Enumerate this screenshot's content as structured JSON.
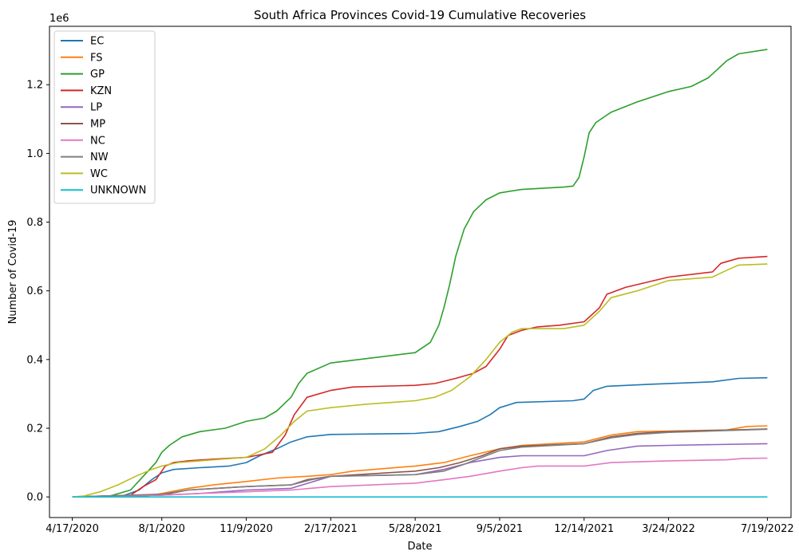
{
  "chart_data": {
    "type": "line",
    "title": "South Africa Provinces Covid-19 Cumulative Recoveries",
    "xlabel": "Date",
    "ylabel": "Number of Covid-19",
    "y_offset_label": "1e6",
    "y_multiplier": 1000000,
    "ylim": [
      -0.06,
      1.37
    ],
    "yticks": [
      0.0,
      0.2,
      0.4,
      0.6,
      0.8,
      1.0,
      1.2
    ],
    "ytick_labels": [
      "0.0",
      "0.2",
      "0.4",
      "0.6",
      "0.8",
      "1.0",
      "1.2"
    ],
    "xlim": [
      "2020-03-21",
      "2022-08-16"
    ],
    "xticks": [
      "2020-04-17",
      "2020-08-01",
      "2020-11-09",
      "2021-02-17",
      "2021-05-28",
      "2021-09-05",
      "2021-12-14",
      "2022-03-24",
      "2022-07-19"
    ],
    "xtick_labels": [
      "4/17/2020",
      "8/1/2020",
      "11/9/2020",
      "2/17/2021",
      "5/28/2021",
      "9/5/2021",
      "12/14/2021",
      "3/24/2022",
      "7/19/2022"
    ],
    "grid": false,
    "legend_position": "upper-left",
    "series": [
      {
        "name": "EC",
        "color": "#1f77b4",
        "points": [
          [
            "2020-04-17",
            0.0
          ],
          [
            "2020-06-15",
            0.002
          ],
          [
            "2020-07-05",
            0.02
          ],
          [
            "2020-07-20",
            0.05
          ],
          [
            "2020-08-01",
            0.07
          ],
          [
            "2020-08-15",
            0.08
          ],
          [
            "2020-09-15",
            0.085
          ],
          [
            "2020-10-20",
            0.09
          ],
          [
            "2020-11-09",
            0.1
          ],
          [
            "2020-11-25",
            0.12
          ],
          [
            "2020-12-15",
            0.14
          ],
          [
            "2021-01-01",
            0.16
          ],
          [
            "2021-01-20",
            0.175
          ],
          [
            "2021-02-17",
            0.182
          ],
          [
            "2021-05-28",
            0.185
          ],
          [
            "2021-06-25",
            0.19
          ],
          [
            "2021-07-20",
            0.205
          ],
          [
            "2021-08-10",
            0.22
          ],
          [
            "2021-08-25",
            0.24
          ],
          [
            "2021-09-05",
            0.26
          ],
          [
            "2021-09-25",
            0.275
          ],
          [
            "2021-12-01",
            0.28
          ],
          [
            "2021-12-14",
            0.285
          ],
          [
            "2021-12-25",
            0.31
          ],
          [
            "2022-01-10",
            0.322
          ],
          [
            "2022-03-01",
            0.328
          ],
          [
            "2022-05-15",
            0.335
          ],
          [
            "2022-06-15",
            0.345
          ],
          [
            "2022-07-19",
            0.347
          ]
        ]
      },
      {
        "name": "FS",
        "color": "#ff7f0e",
        "points": [
          [
            "2020-04-17",
            0.0
          ],
          [
            "2020-07-10",
            0.002
          ],
          [
            "2020-08-01",
            0.01
          ],
          [
            "2020-09-01",
            0.025
          ],
          [
            "2020-10-01",
            0.035
          ],
          [
            "2020-11-09",
            0.045
          ],
          [
            "2020-12-15",
            0.055
          ],
          [
            "2021-01-20",
            0.06
          ],
          [
            "2021-02-17",
            0.065
          ],
          [
            "2021-03-15",
            0.075
          ],
          [
            "2021-05-28",
            0.09
          ],
          [
            "2021-07-01",
            0.1
          ],
          [
            "2021-08-01",
            0.12
          ],
          [
            "2021-09-05",
            0.14
          ],
          [
            "2021-10-01",
            0.15
          ],
          [
            "2021-12-14",
            0.16
          ],
          [
            "2022-01-15",
            0.18
          ],
          [
            "2022-02-15",
            0.19
          ],
          [
            "2022-06-01",
            0.195
          ],
          [
            "2022-06-25",
            0.205
          ],
          [
            "2022-07-19",
            0.207
          ]
        ]
      },
      {
        "name": "GP",
        "color": "#2ca02c",
        "points": [
          [
            "2020-04-17",
            0.0
          ],
          [
            "2020-06-01",
            0.003
          ],
          [
            "2020-06-25",
            0.02
          ],
          [
            "2020-07-10",
            0.06
          ],
          [
            "2020-07-25",
            0.1
          ],
          [
            "2020-08-01",
            0.13
          ],
          [
            "2020-08-10",
            0.15
          ],
          [
            "2020-08-25",
            0.175
          ],
          [
            "2020-09-15",
            0.19
          ],
          [
            "2020-10-15",
            0.2
          ],
          [
            "2020-11-09",
            0.22
          ],
          [
            "2020-12-01",
            0.23
          ],
          [
            "2020-12-15",
            0.25
          ],
          [
            "2021-01-01",
            0.29
          ],
          [
            "2021-01-10",
            0.33
          ],
          [
            "2021-01-20",
            0.36
          ],
          [
            "2021-02-17",
            0.39
          ],
          [
            "2021-05-28",
            0.42
          ],
          [
            "2021-06-15",
            0.45
          ],
          [
            "2021-06-25",
            0.5
          ],
          [
            "2021-07-01",
            0.55
          ],
          [
            "2021-07-08",
            0.62
          ],
          [
            "2021-07-15",
            0.7
          ],
          [
            "2021-07-25",
            0.78
          ],
          [
            "2021-08-05",
            0.83
          ],
          [
            "2021-08-20",
            0.865
          ],
          [
            "2021-09-05",
            0.885
          ],
          [
            "2021-10-01",
            0.895
          ],
          [
            "2021-11-20",
            0.902
          ],
          [
            "2021-12-01",
            0.905
          ],
          [
            "2021-12-08",
            0.93
          ],
          [
            "2021-12-14",
            0.99
          ],
          [
            "2021-12-20",
            1.06
          ],
          [
            "2021-12-28",
            1.09
          ],
          [
            "2022-01-15",
            1.12
          ],
          [
            "2022-02-15",
            1.15
          ],
          [
            "2022-03-24",
            1.18
          ],
          [
            "2022-04-20",
            1.195
          ],
          [
            "2022-05-10",
            1.22
          ],
          [
            "2022-06-01",
            1.27
          ],
          [
            "2022-06-15",
            1.29
          ],
          [
            "2022-07-19",
            1.303
          ]
        ]
      },
      {
        "name": "KZN",
        "color": "#d62728",
        "points": [
          [
            "2020-04-17",
            0.0
          ],
          [
            "2020-06-25",
            0.005
          ],
          [
            "2020-07-10",
            0.03
          ],
          [
            "2020-07-25",
            0.05
          ],
          [
            "2020-08-05",
            0.09
          ],
          [
            "2020-08-15",
            0.1
          ],
          [
            "2020-09-01",
            0.105
          ],
          [
            "2020-10-01",
            0.11
          ],
          [
            "2020-11-09",
            0.115
          ],
          [
            "2020-12-10",
            0.13
          ],
          [
            "2020-12-25",
            0.18
          ],
          [
            "2021-01-05",
            0.24
          ],
          [
            "2021-01-20",
            0.29
          ],
          [
            "2021-02-17",
            0.31
          ],
          [
            "2021-03-15",
            0.32
          ],
          [
            "2021-05-28",
            0.325
          ],
          [
            "2021-06-20",
            0.33
          ],
          [
            "2021-07-15",
            0.345
          ],
          [
            "2021-08-05",
            0.36
          ],
          [
            "2021-08-20",
            0.38
          ],
          [
            "2021-09-05",
            0.43
          ],
          [
            "2021-09-15",
            0.47
          ],
          [
            "2021-10-01",
            0.485
          ],
          [
            "2021-10-20",
            0.495
          ],
          [
            "2021-11-15",
            0.5
          ],
          [
            "2021-12-14",
            0.51
          ],
          [
            "2022-01-01",
            0.55
          ],
          [
            "2022-01-10",
            0.59
          ],
          [
            "2022-02-01",
            0.61
          ],
          [
            "2022-03-24",
            0.64
          ],
          [
            "2022-05-15",
            0.655
          ],
          [
            "2022-05-25",
            0.68
          ],
          [
            "2022-06-15",
            0.695
          ],
          [
            "2022-07-19",
            0.7
          ]
        ]
      },
      {
        "name": "LP",
        "color": "#9467bd",
        "points": [
          [
            "2020-04-17",
            0.0
          ],
          [
            "2020-08-01",
            0.005
          ],
          [
            "2020-09-15",
            0.01
          ],
          [
            "2020-11-09",
            0.02
          ],
          [
            "2021-01-01",
            0.025
          ],
          [
            "2021-02-17",
            0.06
          ],
          [
            "2021-05-28",
            0.065
          ],
          [
            "2021-07-01",
            0.08
          ],
          [
            "2021-08-01",
            0.1
          ],
          [
            "2021-09-05",
            0.115
          ],
          [
            "2021-10-01",
            0.12
          ],
          [
            "2021-12-14",
            0.12
          ],
          [
            "2022-01-10",
            0.135
          ],
          [
            "2022-02-15",
            0.148
          ],
          [
            "2022-03-24",
            0.15
          ],
          [
            "2022-07-19",
            0.155
          ]
        ]
      },
      {
        "name": "MP",
        "color": "#8c564b",
        "points": [
          [
            "2020-04-17",
            0.0
          ],
          [
            "2020-08-01",
            0.005
          ],
          [
            "2020-09-01",
            0.02
          ],
          [
            "2020-11-09",
            0.03
          ],
          [
            "2021-01-01",
            0.035
          ],
          [
            "2021-01-20",
            0.05
          ],
          [
            "2021-02-17",
            0.06
          ],
          [
            "2021-05-28",
            0.075
          ],
          [
            "2021-06-25",
            0.085
          ],
          [
            "2021-07-20",
            0.1
          ],
          [
            "2021-08-15",
            0.12
          ],
          [
            "2021-09-05",
            0.14
          ],
          [
            "2021-10-01",
            0.148
          ],
          [
            "2021-12-14",
            0.155
          ],
          [
            "2022-01-15",
            0.175
          ],
          [
            "2022-02-15",
            0.185
          ],
          [
            "2022-03-24",
            0.19
          ],
          [
            "2022-07-19",
            0.198
          ]
        ]
      },
      {
        "name": "NC",
        "color": "#e377c2",
        "points": [
          [
            "2020-04-17",
            0.0
          ],
          [
            "2020-08-01",
            0.005
          ],
          [
            "2020-09-15",
            0.01
          ],
          [
            "2020-11-09",
            0.015
          ],
          [
            "2021-01-01",
            0.02
          ],
          [
            "2021-02-17",
            0.03
          ],
          [
            "2021-05-28",
            0.04
          ],
          [
            "2021-07-01",
            0.05
          ],
          [
            "2021-08-01",
            0.06
          ],
          [
            "2021-09-05",
            0.075
          ],
          [
            "2021-10-01",
            0.085
          ],
          [
            "2021-10-20",
            0.09
          ],
          [
            "2021-12-14",
            0.09
          ],
          [
            "2022-01-15",
            0.1
          ],
          [
            "2022-03-24",
            0.105
          ],
          [
            "2022-06-01",
            0.108
          ],
          [
            "2022-06-20",
            0.112
          ],
          [
            "2022-07-19",
            0.113
          ]
        ]
      },
      {
        "name": "NW",
        "color": "#7f7f7f",
        "points": [
          [
            "2020-04-17",
            0.0
          ],
          [
            "2020-08-01",
            0.008
          ],
          [
            "2020-09-01",
            0.02
          ],
          [
            "2020-11-09",
            0.03
          ],
          [
            "2021-01-01",
            0.035
          ],
          [
            "2021-01-25",
            0.05
          ],
          [
            "2021-02-17",
            0.06
          ],
          [
            "2021-05-28",
            0.065
          ],
          [
            "2021-07-01",
            0.075
          ],
          [
            "2021-07-25",
            0.095
          ],
          [
            "2021-08-20",
            0.12
          ],
          [
            "2021-09-05",
            0.135
          ],
          [
            "2021-10-01",
            0.145
          ],
          [
            "2021-12-14",
            0.155
          ],
          [
            "2022-01-15",
            0.172
          ],
          [
            "2022-02-15",
            0.182
          ],
          [
            "2022-03-24",
            0.188
          ],
          [
            "2022-07-19",
            0.197
          ]
        ]
      },
      {
        "name": "WC",
        "color": "#bcbd22",
        "points": [
          [
            "2020-04-17",
            0.0
          ],
          [
            "2020-05-01",
            0.003
          ],
          [
            "2020-05-20",
            0.015
          ],
          [
            "2020-06-10",
            0.035
          ],
          [
            "2020-07-01",
            0.06
          ],
          [
            "2020-07-20",
            0.08
          ],
          [
            "2020-08-01",
            0.09
          ],
          [
            "2020-08-20",
            0.1
          ],
          [
            "2020-09-15",
            0.105
          ],
          [
            "2020-11-09",
            0.115
          ],
          [
            "2020-12-01",
            0.14
          ],
          [
            "2020-12-20",
            0.18
          ],
          [
            "2021-01-05",
            0.22
          ],
          [
            "2021-01-20",
            0.25
          ],
          [
            "2021-02-17",
            0.26
          ],
          [
            "2021-04-01",
            0.27
          ],
          [
            "2021-05-28",
            0.28
          ],
          [
            "2021-06-20",
            0.29
          ],
          [
            "2021-07-10",
            0.31
          ],
          [
            "2021-08-01",
            0.35
          ],
          [
            "2021-08-20",
            0.4
          ],
          [
            "2021-09-05",
            0.45
          ],
          [
            "2021-09-20",
            0.48
          ],
          [
            "2021-10-01",
            0.49
          ],
          [
            "2021-11-20",
            0.49
          ],
          [
            "2021-12-14",
            0.5
          ],
          [
            "2022-01-01",
            0.54
          ],
          [
            "2022-01-15",
            0.58
          ],
          [
            "2022-02-15",
            0.6
          ],
          [
            "2022-03-24",
            0.63
          ],
          [
            "2022-05-15",
            0.64
          ],
          [
            "2022-06-01",
            0.66
          ],
          [
            "2022-06-15",
            0.675
          ],
          [
            "2022-07-19",
            0.678
          ]
        ]
      },
      {
        "name": "UNKNOWN",
        "color": "#17becf",
        "points": [
          [
            "2020-04-17",
            0.0
          ],
          [
            "2022-07-19",
            0.0
          ]
        ]
      }
    ]
  }
}
